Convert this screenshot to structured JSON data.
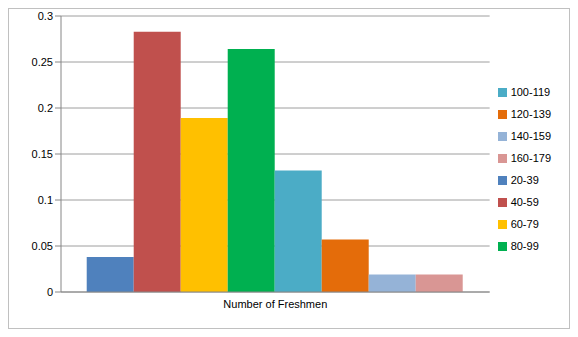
{
  "chart_data": {
    "type": "bar",
    "categories": [
      "Number of Freshmen"
    ],
    "series": [
      {
        "name": "20-39",
        "color": "#4f81bd",
        "values": [
          0.038
        ]
      },
      {
        "name": "40-59",
        "color": "#c0504d",
        "values": [
          0.283
        ]
      },
      {
        "name": "60-79",
        "color": "#ffc000",
        "values": [
          0.189
        ]
      },
      {
        "name": "80-99",
        "color": "#00b050",
        "values": [
          0.264
        ]
      },
      {
        "name": "100-119",
        "color": "#4bacc6",
        "values": [
          0.132
        ]
      },
      {
        "name": "120-139",
        "color": "#e46c0a",
        "values": [
          0.057
        ]
      },
      {
        "name": "140-159",
        "color": "#95b3d7",
        "values": [
          0.019
        ]
      },
      {
        "name": "160-179",
        "color": "#d99694",
        "values": [
          0.019
        ]
      }
    ],
    "ylim": [
      0,
      0.3
    ],
    "yticks": [
      0,
      0.05,
      0.1,
      0.15,
      0.2,
      0.25,
      0.3
    ],
    "grid": true,
    "legend": "right"
  }
}
